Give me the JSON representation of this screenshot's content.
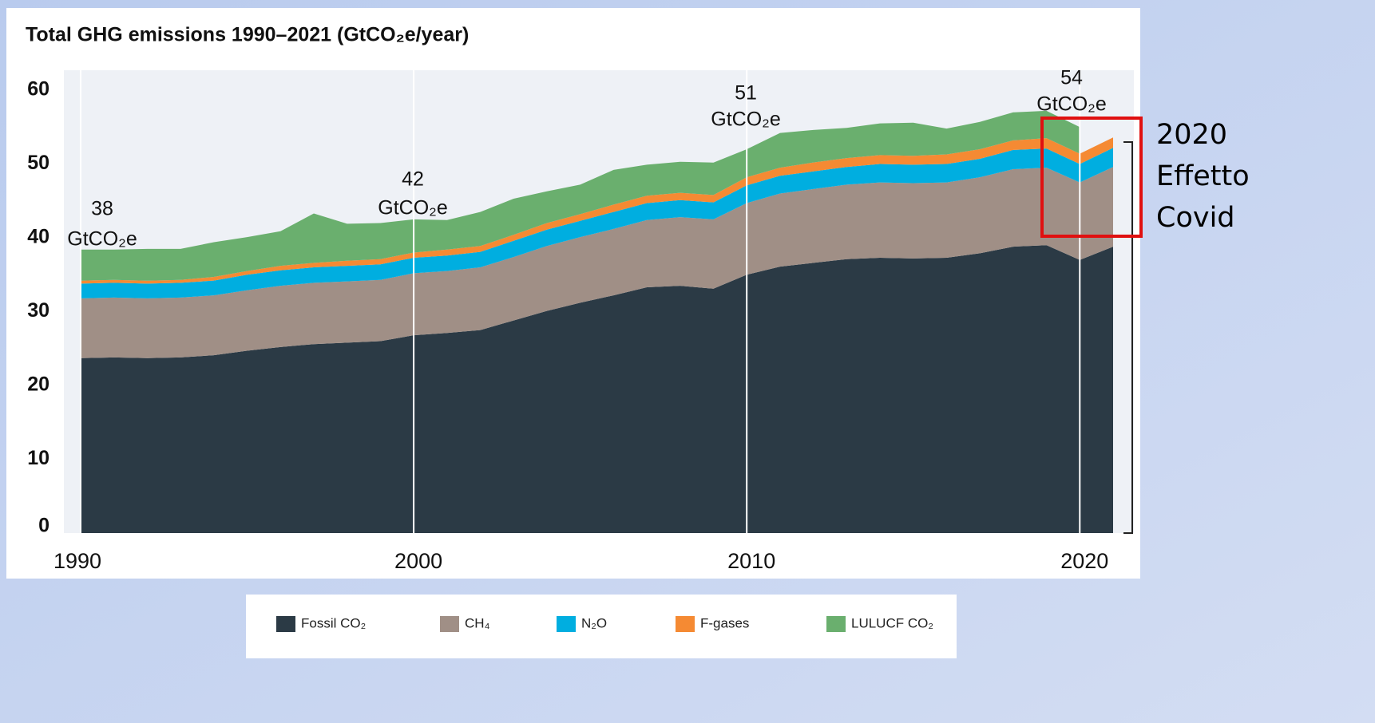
{
  "chart_data": {
    "type": "stacked_area",
    "title": "Total GHG emissions 1990–2021 (GtCO₂e/year)",
    "x": [
      1990,
      1991,
      1992,
      1993,
      1994,
      1995,
      1996,
      1997,
      1998,
      1999,
      2000,
      2001,
      2002,
      2003,
      2004,
      2005,
      2006,
      2007,
      2008,
      2009,
      2010,
      2011,
      2012,
      2013,
      2014,
      2015,
      2016,
      2017,
      2018,
      2019,
      2020,
      2021
    ],
    "series": [
      {
        "name": "Fossil CO₂",
        "color": "#2b3a45",
        "values": [
          23.7,
          23.8,
          23.7,
          23.8,
          24.1,
          24.7,
          25.2,
          25.6,
          25.8,
          26.0,
          26.8,
          27.1,
          27.5,
          28.8,
          30.1,
          31.2,
          32.2,
          33.3,
          33.5,
          33.1,
          35.0,
          36.1,
          36.6,
          37.1,
          37.3,
          37.2,
          37.3,
          37.9,
          38.8,
          39.0,
          37.0,
          38.8
        ]
      },
      {
        "name": "CH₄",
        "color": "#a08f86",
        "values": [
          8.1,
          8.1,
          8.1,
          8.1,
          8.1,
          8.2,
          8.3,
          8.3,
          8.3,
          8.3,
          8.4,
          8.4,
          8.5,
          8.6,
          8.8,
          8.9,
          9.0,
          9.1,
          9.3,
          9.4,
          9.7,
          9.9,
          10.0,
          10.1,
          10.2,
          10.2,
          10.2,
          10.3,
          10.5,
          10.5,
          10.5,
          10.8
        ]
      },
      {
        "name": "N₂O",
        "color": "#00aee0",
        "values": [
          2.0,
          2.0,
          2.0,
          2.0,
          2.0,
          2.1,
          2.1,
          2.1,
          2.1,
          2.1,
          2.1,
          2.1,
          2.1,
          2.2,
          2.2,
          2.2,
          2.3,
          2.3,
          2.3,
          2.3,
          2.4,
          2.4,
          2.4,
          2.4,
          2.5,
          2.5,
          2.5,
          2.5,
          2.6,
          2.6,
          2.5,
          2.6
        ]
      },
      {
        "name": "F-gases",
        "color": "#f58a33",
        "values": [
          0.4,
          0.4,
          0.4,
          0.4,
          0.5,
          0.5,
          0.6,
          0.6,
          0.7,
          0.7,
          0.7,
          0.8,
          0.8,
          0.8,
          0.9,
          0.9,
          1.0,
          1.0,
          1.0,
          1.0,
          1.1,
          1.1,
          1.2,
          1.2,
          1.2,
          1.2,
          1.3,
          1.3,
          1.3,
          1.4,
          1.4,
          1.4
        ]
      },
      {
        "name": "LULUCF CO₂",
        "color": "#6aaf6e",
        "values": [
          4.2,
          4.1,
          4.3,
          4.2,
          4.7,
          4.6,
          4.7,
          6.7,
          5.0,
          4.9,
          4.5,
          4.0,
          4.6,
          4.9,
          4.3,
          4.0,
          4.7,
          4.2,
          4.2,
          4.4,
          3.8,
          4.7,
          4.4,
          4.1,
          4.3,
          4.5,
          3.5,
          3.7,
          3.8,
          3.7,
          3.6,
          null
        ]
      }
    ],
    "xlim": [
      1990,
      2021
    ],
    "xticks": [
      1990,
      2000,
      2010,
      2020
    ],
    "ylim": [
      0,
      60
    ],
    "yticks": [
      0,
      10,
      20,
      30,
      40,
      50,
      60
    ],
    "grid": "x",
    "annotations": [
      {
        "text": "38",
        "unit": "GtCO₂e"
      },
      {
        "text": "42",
        "unit": "GtCO₂e"
      },
      {
        "text": "51",
        "unit": "GtCO₂e"
      },
      {
        "text": "54",
        "unit": "GtCO₂e"
      }
    ],
    "callout": [
      "2020",
      "Effetto",
      "Covid"
    ]
  }
}
